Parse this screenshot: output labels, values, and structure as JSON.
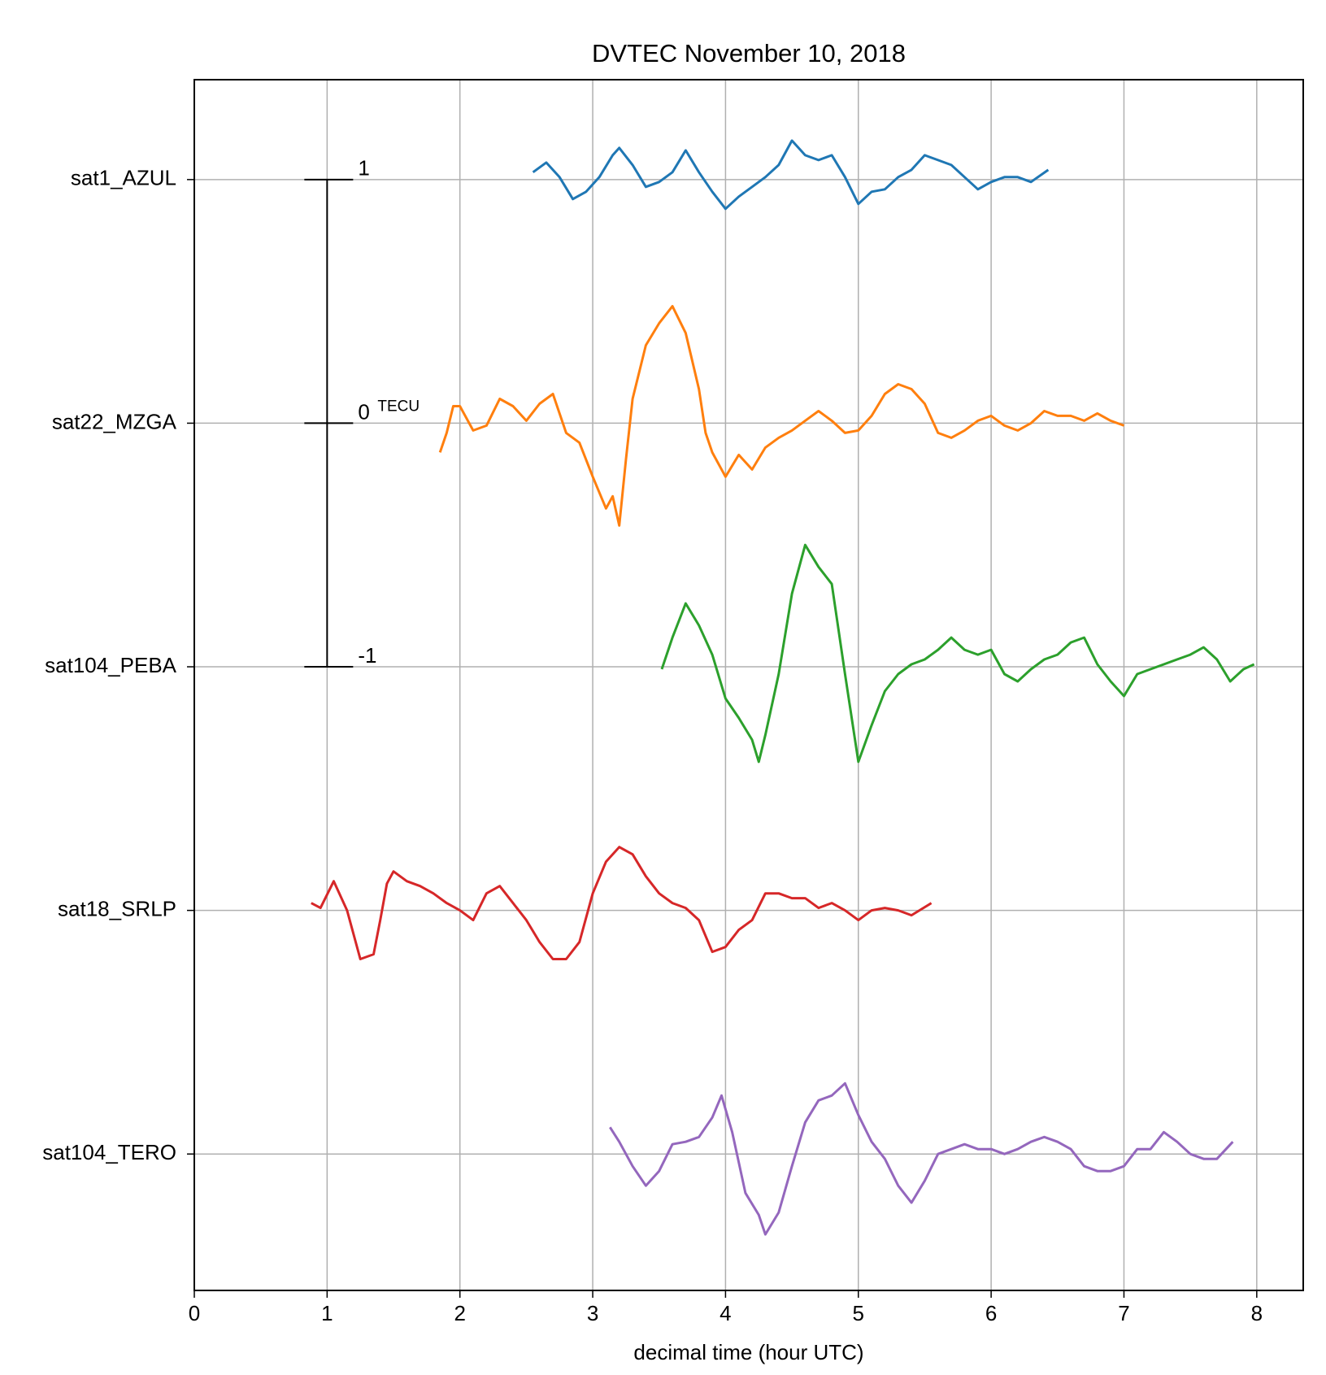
{
  "chart_data": {
    "type": "line",
    "title": "DVTEC November 10, 2018",
    "xlabel": "decimal time (hour UTC)",
    "xlim": [
      0,
      8.35
    ],
    "xticks": [
      0,
      1,
      2,
      3,
      4,
      5,
      6,
      7,
      8
    ],
    "ylim": [
      -0.56,
      4.41
    ],
    "yticks": [
      {
        "value": 4,
        "label": "sat1_AZUL"
      },
      {
        "value": 3,
        "label": "sat22_MZGA"
      },
      {
        "value": 2,
        "label": "sat104_PEBA"
      },
      {
        "value": 1,
        "label": "sat18_SRLP"
      },
      {
        "value": 0,
        "label": "sat104_TERO"
      }
    ],
    "grid": true,
    "scale_bar": {
      "x": 1,
      "labels": [
        1,
        0,
        -1
      ],
      "unit": "TECU"
    },
    "series": [
      {
        "color": "#1f77b4",
        "x": [
          2.55,
          2.65,
          2.75,
          2.85,
          2.95,
          3.05,
          3.15,
          3.2,
          3.3,
          3.4,
          3.5,
          3.6,
          3.7,
          3.8,
          3.9,
          4.0,
          4.1,
          4.2,
          4.3,
          4.4,
          4.5,
          4.6,
          4.7,
          4.8,
          4.9,
          5.0,
          5.1,
          5.2,
          5.3,
          5.4,
          5.5,
          5.6,
          5.7,
          5.8,
          5.9,
          6.0,
          6.1,
          6.2,
          6.3,
          6.43
        ],
        "values": [
          0.03,
          0.07,
          0.01,
          -0.08,
          -0.05,
          0.01,
          0.1,
          0.13,
          0.06,
          -0.03,
          -0.01,
          0.03,
          0.12,
          0.03,
          -0.05,
          -0.12,
          -0.07,
          -0.03,
          0.01,
          0.06,
          0.16,
          0.1,
          0.08,
          0.1,
          0.01,
          -0.1,
          -0.05,
          -0.04,
          0.01,
          0.04,
          0.1,
          0.08,
          0.06,
          0.01,
          -0.04,
          -0.01,
          0.01,
          0.01,
          -0.01,
          0.04
        ]
      },
      {
        "color": "#ff7f0e",
        "x": [
          1.85,
          1.9,
          1.95,
          2.0,
          2.1,
          2.2,
          2.3,
          2.4,
          2.5,
          2.6,
          2.7,
          2.8,
          2.9,
          3.0,
          3.1,
          3.15,
          3.2,
          3.25,
          3.3,
          3.4,
          3.5,
          3.6,
          3.7,
          3.8,
          3.85,
          3.9,
          4.0,
          4.1,
          4.2,
          4.3,
          4.4,
          4.5,
          4.6,
          4.7,
          4.8,
          4.9,
          5.0,
          5.1,
          5.2,
          5.3,
          5.4,
          5.5,
          5.6,
          5.7,
          5.8,
          5.9,
          6.0,
          6.1,
          6.2,
          6.3,
          6.4,
          6.5,
          6.6,
          6.7,
          6.8,
          6.9,
          7.0
        ],
        "values": [
          -0.12,
          -0.04,
          0.07,
          0.07,
          -0.03,
          -0.01,
          0.1,
          0.07,
          0.01,
          0.08,
          0.12,
          -0.04,
          -0.08,
          -0.22,
          -0.35,
          -0.3,
          -0.42,
          -0.15,
          0.1,
          0.32,
          0.41,
          0.48,
          0.37,
          0.14,
          -0.04,
          -0.12,
          -0.22,
          -0.13,
          -0.19,
          -0.1,
          -0.06,
          -0.03,
          0.01,
          0.05,
          0.01,
          -0.04,
          -0.03,
          0.03,
          0.12,
          0.16,
          0.14,
          0.08,
          -0.04,
          -0.06,
          -0.03,
          0.01,
          0.03,
          -0.01,
          -0.03,
          0,
          0.05,
          0.03,
          0.03,
          0.01,
          0.04,
          0.01,
          -0.01
        ]
      },
      {
        "color": "#2ca02c",
        "x": [
          3.52,
          3.6,
          3.7,
          3.8,
          3.9,
          4.0,
          4.1,
          4.2,
          4.25,
          4.3,
          4.4,
          4.5,
          4.6,
          4.7,
          4.8,
          4.9,
          5.0,
          5.1,
          5.2,
          5.3,
          5.4,
          5.5,
          5.6,
          5.7,
          5.8,
          5.9,
          6.0,
          6.1,
          6.2,
          6.3,
          6.4,
          6.5,
          6.6,
          6.7,
          6.8,
          6.9,
          7.0,
          7.1,
          7.2,
          7.3,
          7.4,
          7.5,
          7.6,
          7.7,
          7.8,
          7.9,
          7.98
        ],
        "values": [
          -0.01,
          0.12,
          0.26,
          0.17,
          0.05,
          -0.13,
          -0.21,
          -0.3,
          -0.39,
          -0.28,
          -0.03,
          0.3,
          0.5,
          0.41,
          0.34,
          -0.03,
          -0.39,
          -0.24,
          -0.1,
          -0.03,
          0.01,
          0.03,
          0.07,
          0.12,
          0.07,
          0.05,
          0.07,
          -0.03,
          -0.06,
          -0.01,
          0.03,
          0.05,
          0.1,
          0.12,
          0.01,
          -0.06,
          -0.12,
          -0.03,
          -0.01,
          0.01,
          0.03,
          0.05,
          0.08,
          0.03,
          -0.06,
          -0.01,
          0.01
        ]
      },
      {
        "color": "#d62728",
        "x": [
          0.88,
          0.95,
          1.05,
          1.15,
          1.25,
          1.35,
          1.4,
          1.45,
          1.5,
          1.6,
          1.7,
          1.8,
          1.9,
          2.0,
          2.1,
          2.2,
          2.3,
          2.4,
          2.5,
          2.6,
          2.7,
          2.8,
          2.9,
          3.0,
          3.1,
          3.2,
          3.3,
          3.4,
          3.5,
          3.6,
          3.7,
          3.8,
          3.9,
          4.0,
          4.1,
          4.2,
          4.3,
          4.4,
          4.5,
          4.6,
          4.7,
          4.8,
          4.9,
          5.0,
          5.1,
          5.2,
          5.3,
          5.4,
          5.55
        ],
        "values": [
          0.03,
          0.01,
          0.12,
          0,
          -0.2,
          -0.18,
          -0.04,
          0.11,
          0.16,
          0.12,
          0.1,
          0.07,
          0.03,
          0,
          -0.04,
          0.07,
          0.1,
          0.03,
          -0.04,
          -0.13,
          -0.2,
          -0.2,
          -0.13,
          0.07,
          0.2,
          0.26,
          0.23,
          0.14,
          0.07,
          0.03,
          0.01,
          -0.04,
          -0.17,
          -0.15,
          -0.08,
          -0.04,
          0.07,
          0.07,
          0.05,
          0.05,
          0.01,
          0.03,
          0,
          -0.04,
          0,
          0.01,
          0,
          -0.02,
          0.03
        ]
      },
      {
        "color": "#9467bd",
        "x": [
          3.13,
          3.2,
          3.3,
          3.4,
          3.5,
          3.6,
          3.7,
          3.8,
          3.9,
          3.97,
          4.05,
          4.15,
          4.25,
          4.3,
          4.4,
          4.5,
          4.6,
          4.7,
          4.8,
          4.9,
          5.0,
          5.1,
          5.2,
          5.3,
          5.4,
          5.5,
          5.6,
          5.7,
          5.8,
          5.9,
          6.0,
          6.1,
          6.2,
          6.3,
          6.4,
          6.5,
          6.6,
          6.7,
          6.8,
          6.9,
          7.0,
          7.1,
          7.2,
          7.3,
          7.4,
          7.5,
          7.6,
          7.7,
          7.82
        ],
        "values": [
          0.11,
          0.05,
          -0.05,
          -0.13,
          -0.07,
          0.04,
          0.05,
          0.07,
          0.15,
          0.24,
          0.09,
          -0.16,
          -0.25,
          -0.33,
          -0.24,
          -0.05,
          0.13,
          0.22,
          0.24,
          0.29,
          0.16,
          0.05,
          -0.02,
          -0.13,
          -0.2,
          -0.11,
          0,
          0.02,
          0.04,
          0.02,
          0.02,
          0,
          0.02,
          0.05,
          0.07,
          0.05,
          0.02,
          -0.05,
          -0.07,
          -0.07,
          -0.05,
          0.02,
          0.02,
          0.09,
          0.05,
          0,
          -0.02,
          -0.02,
          0.05
        ]
      }
    ]
  }
}
